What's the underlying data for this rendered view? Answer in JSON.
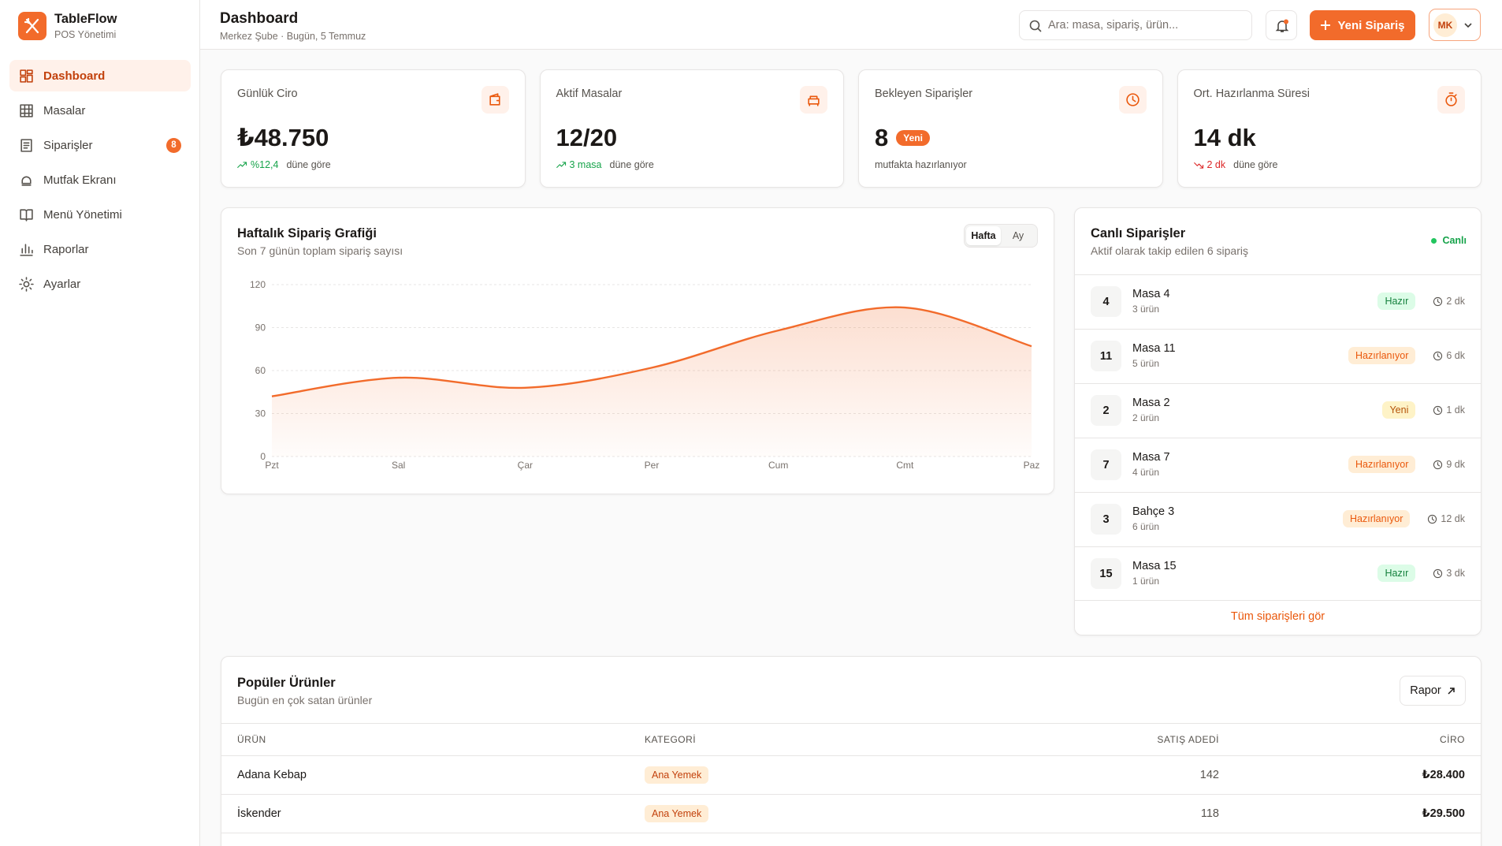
{
  "sidebar": {
    "brand": "TableFlow",
    "tagline": "POS Yönetimi",
    "nav": [
      {
        "label": "Dashboard",
        "active": true
      },
      {
        "label": "Masalar"
      },
      {
        "label": "Siparişler",
        "badge": 8
      },
      {
        "label": "Mutfak Ekranı"
      },
      {
        "label": "Menü Yönetimi"
      },
      {
        "label": "Raporlar"
      },
      {
        "label": "Ayarlar"
      }
    ]
  },
  "header": {
    "title": "Dashboard",
    "subtitle": "Merkez Şube · Bugün, 5 Temmuz",
    "search_placeholder": "Ara: masa, sipariş, ürün...",
    "new_order": "Yeni Sipariş",
    "avatar": "MK"
  },
  "stats": [
    {
      "label": "Günlük Ciro",
      "value": "₺48.750",
      "trend": "%12,4",
      "trend_dir": "up",
      "note": "düne göre"
    },
    {
      "label": "Aktif Masalar",
      "value": "12/20",
      "trend": "3 masa",
      "trend_dir": "up",
      "note": "düne göre"
    },
    {
      "label": "Bekleyen Siparişler",
      "value": "8",
      "badge": "Yeni",
      "note": "mutfakta hazırlanıyor"
    },
    {
      "label": "Ort. Hazırlanma Süresi",
      "value": "14 dk",
      "trend": "2 dk",
      "trend_dir": "down",
      "note": "düne göre"
    }
  ],
  "chart_data": {
    "type": "line",
    "title": "Haftalık Sipariş Grafiği",
    "subtitle": "Son 7 günün toplam sipariş sayısı",
    "tabs": [
      "Hafta",
      "Ay"
    ],
    "categories": [
      "Pzt",
      "Sal",
      "Çar",
      "Per",
      "Cum",
      "Cmt",
      "Paz"
    ],
    "values": [
      42,
      55,
      48,
      62,
      88,
      104,
      77
    ],
    "color": "#f26b2b",
    "ylim": [
      0,
      120
    ],
    "yticks": [
      0,
      30,
      60,
      90,
      120
    ],
    "grid": true
  },
  "live_orders": {
    "title": "Canlı Siparişler",
    "subtitle": "Aktif olarak takip edilen 6 sipariş",
    "status": "Canlı",
    "orders": [
      {
        "no": 4,
        "name": "Masa 4",
        "items": "3 ürün",
        "status": "Hazır",
        "tone": "green",
        "time": "2 dk"
      },
      {
        "no": 11,
        "name": "Masa 11",
        "items": "5 ürün",
        "status": "Hazırlanıyor",
        "tone": "orange",
        "time": "6 dk"
      },
      {
        "no": 2,
        "name": "Masa 2",
        "items": "2 ürün",
        "status": "Yeni",
        "tone": "yellow",
        "time": "1 dk"
      },
      {
        "no": 7,
        "name": "Masa 7",
        "items": "4 ürün",
        "status": "Hazırlanıyor",
        "tone": "orange",
        "time": "9 dk"
      },
      {
        "no": 3,
        "name": "Bahçe 3",
        "items": "6 ürün",
        "status": "Hazırlanıyor",
        "tone": "orange",
        "time": "12 dk"
      },
      {
        "no": 15,
        "name": "Masa 15",
        "items": "1 ürün",
        "status": "Hazır",
        "tone": "green",
        "time": "3 dk"
      }
    ],
    "footer": "Tüm siparişleri gör"
  },
  "popular": {
    "title": "Popüler Ürünler",
    "subtitle": "Bugün en çok satan ürünler",
    "button": "Rapor",
    "columns": [
      "ÜRÜN",
      "KATEGORİ",
      "SATIŞ ADEDİ",
      "CİRO"
    ],
    "rows": [
      [
        "Adana Kebap",
        "Ana Yemek",
        142,
        "₺28.400"
      ],
      [
        "İskender",
        "Ana Yemek",
        118,
        "₺29.500"
      ]
    ]
  }
}
